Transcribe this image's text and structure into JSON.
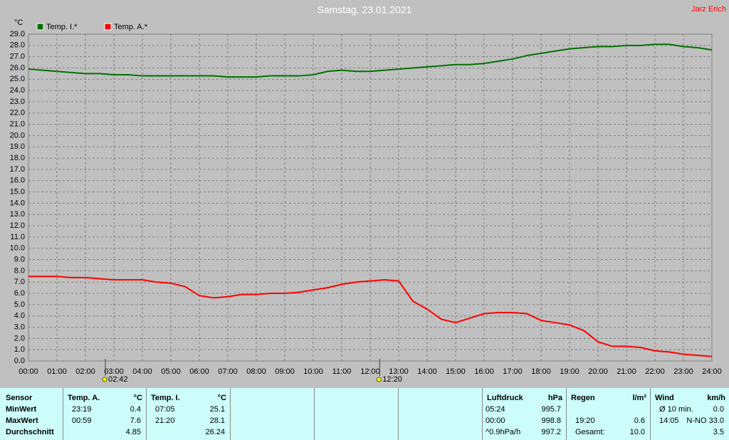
{
  "chart_data": {
    "type": "line",
    "title": "Samstag, 23.01.2021",
    "author": "Jarz Erich",
    "y_label": "°C",
    "x": [
      0,
      0.5,
      1,
      1.5,
      2,
      2.5,
      3,
      3.5,
      4,
      4.5,
      5,
      5.5,
      6,
      6.5,
      7,
      7.5,
      8,
      8.5,
      9,
      9.5,
      10,
      10.5,
      11,
      11.5,
      12,
      12.5,
      13,
      13.5,
      14,
      14.5,
      15,
      15.5,
      16,
      16.5,
      17,
      17.5,
      18,
      18.5,
      19,
      19.5,
      20,
      20.5,
      21,
      21.5,
      22,
      22.5,
      23,
      23.5,
      24
    ],
    "series": [
      {
        "name": "Temp. I.*",
        "color": "#007000",
        "values": [
          25.9,
          25.8,
          25.7,
          25.6,
          25.5,
          25.5,
          25.4,
          25.4,
          25.3,
          25.3,
          25.3,
          25.3,
          25.3,
          25.3,
          25.2,
          25.2,
          25.2,
          25.3,
          25.3,
          25.3,
          25.4,
          25.7,
          25.8,
          25.7,
          25.7,
          25.8,
          25.9,
          26.0,
          26.1,
          26.2,
          26.3,
          26.3,
          26.4,
          26.6,
          26.8,
          27.1,
          27.3,
          27.5,
          27.7,
          27.8,
          27.9,
          27.9,
          28.0,
          28.0,
          28.1,
          28.1,
          27.9,
          27.8,
          27.6
        ]
      },
      {
        "name": "Temp. A.*",
        "color": "#ff0000",
        "values": [
          7.5,
          7.5,
          7.5,
          7.4,
          7.4,
          7.3,
          7.2,
          7.2,
          7.2,
          7.0,
          6.9,
          6.6,
          5.8,
          5.6,
          5.7,
          5.9,
          5.9,
          6.0,
          6.0,
          6.1,
          6.3,
          6.5,
          6.8,
          7.0,
          7.1,
          7.2,
          7.1,
          5.3,
          4.6,
          3.7,
          3.4,
          3.8,
          4.2,
          4.3,
          4.3,
          4.2,
          3.6,
          3.4,
          3.2,
          2.7,
          1.7,
          1.3,
          1.3,
          1.2,
          0.9,
          0.8,
          0.6,
          0.5,
          0.4
        ]
      }
    ],
    "xlim": [
      0,
      24
    ],
    "xticks": [
      {
        "value": 0,
        "label": "00:00"
      },
      {
        "value": 1,
        "label": "01:00"
      },
      {
        "value": 2,
        "label": "02:00"
      },
      {
        "value": 3,
        "label": "03:00"
      },
      {
        "value": 4,
        "label": "04:00"
      },
      {
        "value": 5,
        "label": "05:00"
      },
      {
        "value": 6,
        "label": "06:00"
      },
      {
        "value": 7,
        "label": "07:00"
      },
      {
        "value": 8,
        "label": "08:00"
      },
      {
        "value": 9,
        "label": "09:00"
      },
      {
        "value": 10,
        "label": "10:00"
      },
      {
        "value": 11,
        "label": "11:00"
      },
      {
        "value": 12,
        "label": "12:00"
      },
      {
        "value": 13,
        "label": "13:00"
      },
      {
        "value": 14,
        "label": "14:00"
      },
      {
        "value": 15,
        "label": "15:00"
      },
      {
        "value": 16,
        "label": "16:00"
      },
      {
        "value": 17,
        "label": "17:00"
      },
      {
        "value": 18,
        "label": "18:00"
      },
      {
        "value": 19,
        "label": "19:00"
      },
      {
        "value": 20,
        "label": "20:00"
      },
      {
        "value": 21,
        "label": "21:00"
      },
      {
        "value": 22,
        "label": "22:00"
      },
      {
        "value": 23,
        "label": "23:00"
      },
      {
        "value": 24,
        "label": "24:00"
      }
    ],
    "ylim": [
      0,
      29
    ],
    "yticks": [
      {
        "value": 0,
        "label": "0.0"
      },
      {
        "value": 1,
        "label": "1.0"
      },
      {
        "value": 2,
        "label": "2.0"
      },
      {
        "value": 3,
        "label": "3.0"
      },
      {
        "value": 4,
        "label": "4.0"
      },
      {
        "value": 5,
        "label": "5.0"
      },
      {
        "value": 6,
        "label": "6.0"
      },
      {
        "value": 7,
        "label": "7.0"
      },
      {
        "value": 8,
        "label": "8.0"
      },
      {
        "value": 9,
        "label": "9.0"
      },
      {
        "value": 10,
        "label": "10.0"
      },
      {
        "value": 11,
        "label": "11.0"
      },
      {
        "value": 12,
        "label": "12.0"
      },
      {
        "value": 13,
        "label": "13.0"
      },
      {
        "value": 14,
        "label": "14.0"
      },
      {
        "value": 15,
        "label": "15.0"
      },
      {
        "value": 16,
        "label": "16.0"
      },
      {
        "value": 17,
        "label": "17.0"
      },
      {
        "value": 18,
        "label": "18.0"
      },
      {
        "value": 19,
        "label": "19.0"
      },
      {
        "value": 20,
        "label": "20.0"
      },
      {
        "value": 21,
        "label": "21.0"
      },
      {
        "value": 22,
        "label": "22.0"
      },
      {
        "value": 23,
        "label": "23.0"
      },
      {
        "value": 24,
        "label": "24.0"
      },
      {
        "value": 25,
        "label": "25.0"
      },
      {
        "value": 26,
        "label": "26.0"
      },
      {
        "value": 27,
        "label": "27.0"
      },
      {
        "value": 28,
        "label": "28.0"
      },
      {
        "value": 29,
        "label": "29.0"
      }
    ],
    "grid": true,
    "annotations": [
      {
        "x": 2.7,
        "label": "02:42"
      },
      {
        "x": 12.333,
        "label": "12:20"
      }
    ]
  },
  "stats": {
    "row_labels": [
      "Sensor",
      "MinWert",
      "MaxWert",
      "Durchschnitt"
    ],
    "blocks": [
      {
        "title": "Temp. A.",
        "unit": "°C",
        "rows": [
          [
            "23:19",
            "0.4"
          ],
          [
            "00:59",
            "7.6"
          ],
          [
            null,
            "4.85"
          ]
        ]
      },
      {
        "title": "Temp. I.",
        "unit": "°C",
        "rows": [
          [
            "07:05",
            "25.1"
          ],
          [
            "21:20",
            "28.1"
          ],
          [
            null,
            "26.24"
          ]
        ]
      },
      {
        "title": "Luftdruck",
        "unit": "hPa",
        "rows": [
          [
            "05:24",
            "995.7"
          ],
          [
            "00:00",
            "998.8"
          ],
          [
            "^0.9hPa/h",
            "997.2"
          ]
        ]
      },
      {
        "title": "Regen",
        "unit": "l/m²",
        "rows": [
          [
            null,
            null
          ],
          [
            "19:20",
            "0.6"
          ],
          [
            "Gesamt:",
            "10.0"
          ]
        ]
      },
      {
        "title": "Wind",
        "unit": "km/h",
        "rows": [
          [
            "Ø 10 min.",
            "0.0"
          ],
          [
            "14:05",
            "N-NO 33.0"
          ],
          [
            null,
            "3.5"
          ]
        ]
      }
    ]
  }
}
